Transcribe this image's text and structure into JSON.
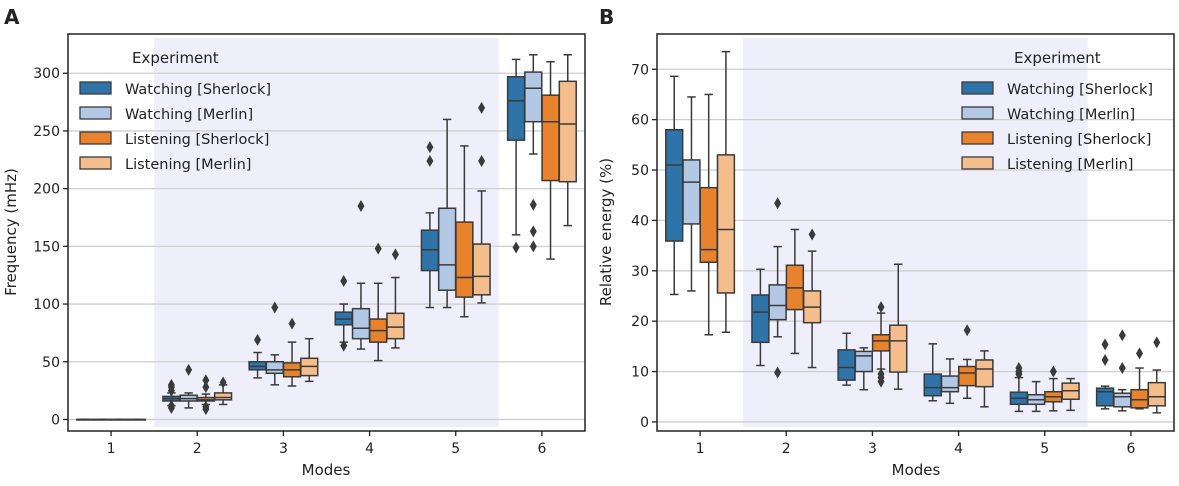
{
  "chart_data": [
    {
      "panel_label": "A",
      "type": "box",
      "xlabel": "Modes",
      "ylabel": "Frequency (mHz)",
      "categories": [
        "1",
        "2",
        "3",
        "4",
        "5",
        "6"
      ],
      "ylim": [
        -10,
        334
      ],
      "yticks": [
        0,
        50,
        100,
        150,
        200,
        250,
        300
      ],
      "grid": "horizontal",
      "shaded_categories": [
        "2",
        "3",
        "4",
        "5"
      ],
      "legend": {
        "title": "Experiment",
        "placement": "top-left"
      },
      "series": [
        {
          "name": "Watching [Sherlock]",
          "color": "#2f74a9",
          "boxes": [
            {
              "q1": 0,
              "median": 0,
              "q3": 0,
              "whislo": 0,
              "whishi": 0,
              "fliers": []
            },
            {
              "q1": 16,
              "median": 18,
              "q3": 20,
              "whislo": 12,
              "whishi": 23,
              "fliers": [
                10,
                12,
                25,
                28,
                30
              ]
            },
            {
              "q1": 43,
              "median": 46,
              "q3": 50,
              "whislo": 36,
              "whishi": 58,
              "fliers": [
                69
              ]
            },
            {
              "q1": 82,
              "median": 87,
              "q3": 93,
              "whislo": 67,
              "whishi": 100,
              "fliers": [
                64,
                120
              ]
            },
            {
              "q1": 129,
              "median": 147,
              "q3": 164,
              "whislo": 97,
              "whishi": 179,
              "fliers": [
                224,
                236
              ]
            },
            {
              "q1": 242,
              "median": 276,
              "q3": 297,
              "whislo": 160,
              "whishi": 312,
              "fliers": [
                149
              ]
            }
          ]
        },
        {
          "name": "Watching [Merlin]",
          "color": "#b3c8e5",
          "boxes": [
            {
              "q1": 0,
              "median": 0,
              "q3": 0,
              "whislo": 0,
              "whishi": 0,
              "fliers": []
            },
            {
              "q1": 16,
              "median": 18,
              "q3": 21,
              "whislo": 10,
              "whishi": 23,
              "fliers": [
                43
              ]
            },
            {
              "q1": 40,
              "median": 43,
              "q3": 50,
              "whislo": 30,
              "whishi": 56,
              "fliers": [
                97
              ]
            },
            {
              "q1": 70,
              "median": 79,
              "q3": 96,
              "whislo": 61,
              "whishi": 118,
              "fliers": [
                185
              ]
            },
            {
              "q1": 112,
              "median": 134,
              "q3": 183,
              "whislo": 97,
              "whishi": 260,
              "fliers": []
            },
            {
              "q1": 258,
              "median": 287,
              "q3": 301,
              "whislo": 230,
              "whishi": 316,
              "fliers": [
                150,
                163,
                186
              ]
            }
          ]
        },
        {
          "name": "Listening [Sherlock]",
          "color": "#e8822c",
          "boxes": [
            {
              "q1": 0,
              "median": 0,
              "q3": 0,
              "whislo": 0,
              "whishi": 0,
              "fliers": []
            },
            {
              "q1": 16,
              "median": 17,
              "q3": 19,
              "whislo": 13,
              "whishi": 22,
              "fliers": [
                9,
                11,
                28,
                34
              ]
            },
            {
              "q1": 37,
              "median": 43,
              "q3": 49,
              "whislo": 29,
              "whishi": 67,
              "fliers": [
                83
              ]
            },
            {
              "q1": 67,
              "median": 77,
              "q3": 87,
              "whislo": 51,
              "whishi": 118,
              "fliers": [
                148
              ]
            },
            {
              "q1": 106,
              "median": 123,
              "q3": 171,
              "whislo": 89,
              "whishi": 237,
              "fliers": []
            },
            {
              "q1": 207,
              "median": 258,
              "q3": 281,
              "whislo": 139,
              "whishi": 310,
              "fliers": []
            }
          ]
        },
        {
          "name": "Listening [Merlin]",
          "color": "#f3bd8c",
          "boxes": [
            {
              "q1": 0,
              "median": 0,
              "q3": 0,
              "whislo": 0,
              "whishi": 0,
              "fliers": []
            },
            {
              "q1": 17,
              "median": 19,
              "q3": 23,
              "whislo": 13,
              "whishi": 30,
              "fliers": [
                32
              ]
            },
            {
              "q1": 38,
              "median": 46,
              "q3": 53,
              "whislo": 33,
              "whishi": 70,
              "fliers": []
            },
            {
              "q1": 70,
              "median": 80,
              "q3": 92,
              "whislo": 62,
              "whishi": 123,
              "fliers": [
                143
              ]
            },
            {
              "q1": 108,
              "median": 124,
              "q3": 152,
              "whislo": 101,
              "whishi": 198,
              "fliers": [
                224,
                270
              ]
            },
            {
              "q1": 206,
              "median": 256,
              "q3": 293,
              "whislo": 168,
              "whishi": 316,
              "fliers": []
            }
          ]
        }
      ]
    },
    {
      "panel_label": "B",
      "type": "box",
      "xlabel": "Modes",
      "ylabel": "Relative energy (%)",
      "categories": [
        "1",
        "2",
        "3",
        "4",
        "5",
        "6"
      ],
      "ylim": [
        -1.8,
        77
      ],
      "yticks": [
        0,
        10,
        20,
        30,
        40,
        50,
        60,
        70
      ],
      "grid": "horizontal",
      "shaded_categories": [
        "2",
        "3",
        "4",
        "5"
      ],
      "legend": {
        "title": "Experiment",
        "placement": "top-right"
      },
      "series": [
        {
          "name": "Watching [Sherlock]",
          "color": "#2f74a9",
          "boxes": [
            {
              "q1": 35.9,
              "median": 51,
              "q3": 58,
              "whislo": 25.3,
              "whishi": 68.6,
              "fliers": []
            },
            {
              "q1": 15.8,
              "median": 21.8,
              "q3": 25.2,
              "whislo": 11.2,
              "whishi": 30.3,
              "fliers": []
            },
            {
              "q1": 8.3,
              "median": 10.8,
              "q3": 14.3,
              "whislo": 7.3,
              "whishi": 17.6,
              "fliers": []
            },
            {
              "q1": 5.2,
              "median": 6.8,
              "q3": 9.5,
              "whislo": 4.2,
              "whishi": 15.5,
              "fliers": []
            },
            {
              "q1": 3.5,
              "median": 4.7,
              "q3": 5.9,
              "whislo": 2.1,
              "whishi": 8.8,
              "fliers": [
                9.5,
                10,
                10.7
              ]
            },
            {
              "q1": 3.2,
              "median": 6,
              "q3": 6.7,
              "whislo": 2.6,
              "whishi": 7.1,
              "fliers": [
                12.3,
                15.4
              ]
            }
          ]
        },
        {
          "name": "Watching [Merlin]",
          "color": "#b3c8e5",
          "boxes": [
            {
              "q1": 39.3,
              "median": 47.6,
              "q3": 52,
              "whislo": 26,
              "whishi": 64.5,
              "fliers": []
            },
            {
              "q1": 20.3,
              "median": 23.1,
              "q3": 27.2,
              "whislo": 16.9,
              "whishi": 34.8,
              "fliers": [
                9.8,
                43.4
              ]
            },
            {
              "q1": 10,
              "median": 13.1,
              "q3": 14,
              "whislo": 6.4,
              "whishi": 14.7,
              "fliers": []
            },
            {
              "q1": 6,
              "median": 6.8,
              "q3": 9.1,
              "whislo": 3.7,
              "whishi": 12.5,
              "fliers": []
            },
            {
              "q1": 3.5,
              "median": 4.4,
              "q3": 5.4,
              "whislo": 2.1,
              "whishi": 8,
              "fliers": []
            },
            {
              "q1": 3,
              "median": 5,
              "q3": 5.7,
              "whislo": 2.2,
              "whishi": 6.4,
              "fliers": [
                10.7,
                17.2
              ]
            }
          ]
        },
        {
          "name": "Listening [Sherlock]",
          "color": "#e8822c",
          "boxes": [
            {
              "q1": 31.7,
              "median": 34.2,
              "q3": 46.5,
              "whislo": 17.3,
              "whishi": 65,
              "fliers": []
            },
            {
              "q1": 22.3,
              "median": 26.6,
              "q3": 31.1,
              "whislo": 13.6,
              "whishi": 38.2,
              "fliers": []
            },
            {
              "q1": 14.1,
              "median": 16.1,
              "q3": 17.3,
              "whislo": 10.5,
              "whishi": 21.6,
              "fliers": [
                8,
                8.8,
                9.5,
                22.8
              ]
            },
            {
              "q1": 7.2,
              "median": 9.7,
              "q3": 11,
              "whislo": 4.7,
              "whishi": 12.4,
              "fliers": [
                18.2
              ]
            },
            {
              "q1": 4,
              "median": 5,
              "q3": 6,
              "whislo": 2.2,
              "whishi": 8.6,
              "fliers": [
                10
              ]
            },
            {
              "q1": 2.8,
              "median": 4.4,
              "q3": 6.4,
              "whislo": 2.6,
              "whishi": 10.7,
              "fliers": [
                13.6
              ]
            }
          ]
        },
        {
          "name": "Listening [Merlin]",
          "color": "#f3bd8c",
          "boxes": [
            {
              "q1": 25.6,
              "median": 38.2,
              "q3": 53,
              "whislo": 17.8,
              "whishi": 73.5,
              "fliers": []
            },
            {
              "q1": 19.7,
              "median": 22.8,
              "q3": 26,
              "whislo": 10.8,
              "whishi": 33.9,
              "fliers": [
                37.2
              ]
            },
            {
              "q1": 9.9,
              "median": 16.1,
              "q3": 19.2,
              "whislo": 6.5,
              "whishi": 31.3,
              "fliers": []
            },
            {
              "q1": 7,
              "median": 10.5,
              "q3": 12.3,
              "whislo": 3,
              "whishi": 14.1,
              "fliers": []
            },
            {
              "q1": 4.5,
              "median": 6.2,
              "q3": 7.7,
              "whislo": 2.3,
              "whishi": 8.6,
              "fliers": []
            },
            {
              "q1": 3.2,
              "median": 5,
              "q3": 7.8,
              "whislo": 1.8,
              "whishi": 10.3,
              "fliers": [
                15.8
              ]
            }
          ]
        }
      ]
    }
  ],
  "colors": {
    "shade": "#efeffb",
    "grid": "#cfcfcf",
    "line": "#3a3a3a"
  }
}
